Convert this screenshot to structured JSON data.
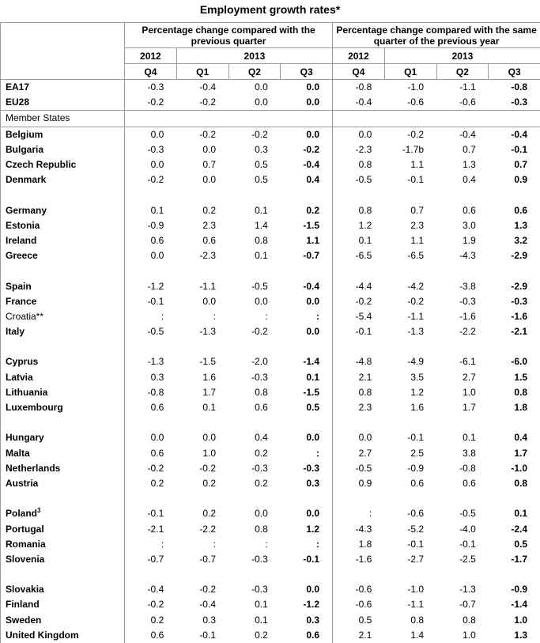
{
  "title": "Employment growth rates*",
  "header": {
    "group1": "Percentage change compared with the previous quarter",
    "group2": "Percentage change compared with the same quarter of the previous year",
    "year_2012": "2012",
    "year_2013": "2013",
    "quarters": [
      "Q4",
      "Q1",
      "Q2",
      "Q3",
      "Q4",
      "Q1",
      "Q2",
      "Q3"
    ]
  },
  "aggregates": [
    {
      "name": "EA17",
      "values": [
        "-0.3",
        "-0.4",
        "0.0",
        "0.0",
        "-0.8",
        "-1.0",
        "-1.1",
        "-0.8"
      ]
    },
    {
      "name": "EU28",
      "values": [
        "-0.2",
        "-0.2",
        "0.0",
        "0.0",
        "-0.4",
        "-0.6",
        "-0.6",
        "-0.3"
      ]
    }
  ],
  "member_states_label": "Member States",
  "groups": [
    [
      {
        "name": "Belgium",
        "values": [
          "0.0",
          "-0.2",
          "-0.2",
          "0.0",
          "0.0",
          "-0.2",
          "-0.4",
          "-0.4"
        ]
      },
      {
        "name": "Bulgaria",
        "values": [
          "-0.3",
          "0.0",
          "0.3",
          "-0.2",
          "-2.3",
          "-1.7b",
          "0.7",
          "-0.1"
        ]
      },
      {
        "name": "Czech Republic",
        "values": [
          "0.0",
          "0.7",
          "0.5",
          "-0.4",
          "0.8",
          "1.1",
          "1.3",
          "0.7"
        ]
      },
      {
        "name": "Denmark",
        "values": [
          "-0.2",
          "0.0",
          "0.5",
          "0.4",
          "-0.5",
          "-0.1",
          "0.4",
          "0.9"
        ]
      }
    ],
    [
      {
        "name": "Germany",
        "values": [
          "0.1",
          "0.2",
          "0.1",
          "0.2",
          "0.8",
          "0.7",
          "0.6",
          "0.6"
        ]
      },
      {
        "name": "Estonia",
        "values": [
          "-0.9",
          "2.3",
          "1.4",
          "-1.5",
          "1.2",
          "2.3",
          "3.0",
          "1.3"
        ]
      },
      {
        "name": "Ireland",
        "values": [
          "0.6",
          "0.6",
          "0.8",
          "1.1",
          "0.1",
          "1.1",
          "1.9",
          "3.2"
        ]
      },
      {
        "name": "Greece",
        "values": [
          "0.0",
          "-2.3",
          "0.1",
          "-0.7",
          "-6.5",
          "-6.5",
          "-4.3",
          "-2.9"
        ]
      }
    ],
    [
      {
        "name": "Spain",
        "values": [
          "-1.2",
          "-1.1",
          "-0.5",
          "-0.4",
          "-4.4",
          "-4.2",
          "-3.8",
          "-2.9"
        ]
      },
      {
        "name": "France",
        "values": [
          "-0.1",
          "0.0",
          "0.0",
          "0.0",
          "-0.2",
          "-0.2",
          "-0.3",
          "-0.3"
        ]
      },
      {
        "name": "Croatia**",
        "regular": true,
        "values": [
          ":",
          ":",
          ":",
          ":",
          "-5.4",
          "-1.1",
          "-1.6",
          "-1.6"
        ]
      },
      {
        "name": "Italy",
        "values": [
          "-0.5",
          "-1.3",
          "-0.2",
          "0.0",
          "-0.1",
          "-1.3",
          "-2.2",
          "-2.1"
        ]
      }
    ],
    [
      {
        "name": "Cyprus",
        "values": [
          "-1.3",
          "-1.5",
          "-2.0",
          "-1.4",
          "-4.8",
          "-4.9",
          "-6.1",
          "-6.0"
        ]
      },
      {
        "name": "Latvia",
        "values": [
          "0.3",
          "1.6",
          "-0.3",
          "0.1",
          "2.1",
          "3.5",
          "2.7",
          "1.5"
        ]
      },
      {
        "name": "Lithuania",
        "values": [
          "-0.8",
          "1.7",
          "0.8",
          "-1.5",
          "0.8",
          "1.2",
          "1.0",
          "0.8"
        ]
      },
      {
        "name": "Luxembourg",
        "values": [
          "0.6",
          "0.1",
          "0.6",
          "0.5",
          "2.3",
          "1.6",
          "1.7",
          "1.8"
        ]
      }
    ],
    [
      {
        "name": "Hungary",
        "values": [
          "0.0",
          "0.0",
          "0.4",
          "0.0",
          "0.0",
          "-0.1",
          "0.1",
          "0.4"
        ]
      },
      {
        "name": "Malta",
        "values": [
          "0.6",
          "1.0",
          "0.2",
          ":",
          "2.7",
          "2.5",
          "3.8",
          "1.7"
        ]
      },
      {
        "name": "Netherlands",
        "values": [
          "-0.2",
          "-0.2",
          "-0.3",
          "-0.3",
          "-0.5",
          "-0.9",
          "-0.8",
          "-1.0"
        ]
      },
      {
        "name": "Austria",
        "values": [
          "0.2",
          "0.2",
          "0.2",
          "0.3",
          "0.9",
          "0.6",
          "0.6",
          "0.8"
        ]
      }
    ],
    [
      {
        "name": "Poland",
        "sup": "3",
        "values": [
          "-0.1",
          "0.2",
          "0.0",
          "0.0",
          ":",
          "-0.6",
          "-0.5",
          "0.1"
        ]
      },
      {
        "name": "Portugal",
        "values": [
          "-2.1",
          "-2.2",
          "0.8",
          "1.2",
          "-4.3",
          "-5.2",
          "-4.0",
          "-2.4"
        ]
      },
      {
        "name": "Romania",
        "values": [
          ":",
          ":",
          ":",
          ":",
          "1.8",
          "-0.1",
          "-0.1",
          "0.5"
        ]
      },
      {
        "name": "Slovenia",
        "values": [
          "-0.7",
          "-0.7",
          "-0.3",
          "-0.1",
          "-1.6",
          "-2.7",
          "-2.5",
          "-1.7"
        ]
      }
    ],
    [
      {
        "name": "Slovakia",
        "values": [
          "-0.4",
          "-0.2",
          "-0.3",
          "0.0",
          "-0.6",
          "-1.0",
          "-1.3",
          "-0.9"
        ]
      },
      {
        "name": "Finland",
        "values": [
          "-0.2",
          "-0.4",
          "0.1",
          "-1.2",
          "-0.6",
          "-1.1",
          "-0.7",
          "-1.4"
        ]
      },
      {
        "name": "Sweden",
        "values": [
          "0.2",
          "0.3",
          "0.1",
          "0.3",
          "0.5",
          "0.8",
          "0.8",
          "1.0"
        ]
      },
      {
        "name": "United Kingdom",
        "values": [
          "0.6",
          "-0.1",
          "0.2",
          "0.6",
          "2.1",
          "1.4",
          "1.0",
          "1.3"
        ]
      }
    ]
  ]
}
